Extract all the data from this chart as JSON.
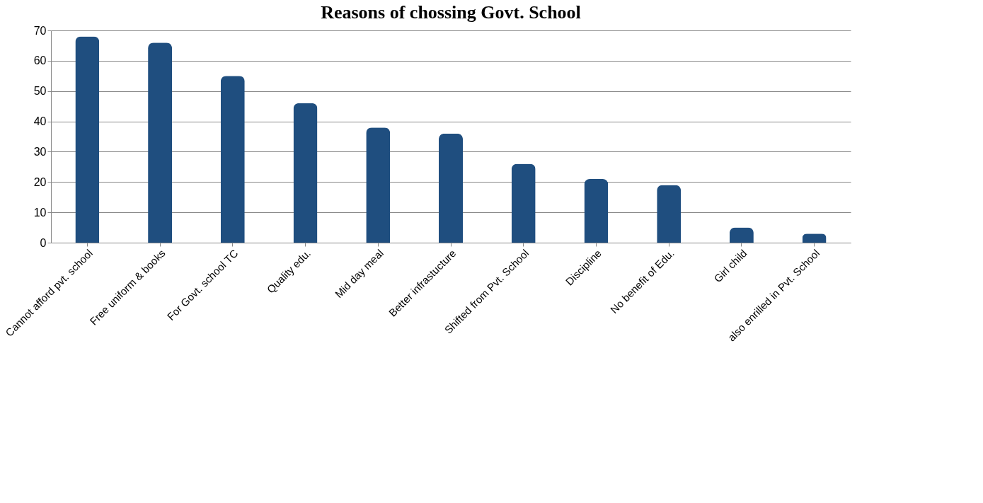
{
  "chart_data": {
    "type": "bar",
    "title": "Reasons of chossing Govt. School",
    "categories": [
      "Cannot afford pvt. school",
      "Free uniform & books",
      "For Govt. school TC",
      "Quality edu.",
      "Mid day meal",
      "Better infrastucture",
      "Shifted from Pvt. School",
      "Discipline",
      "No benefit of Edu.",
      "Girl child",
      "also enrilled in Pvt. School"
    ],
    "values": [
      68,
      66,
      55,
      46,
      38,
      36,
      26,
      21,
      19,
      5,
      3
    ],
    "color": "#1f4e7f",
    "ylim": [
      0,
      70
    ],
    "yticks": [
      0,
      10,
      20,
      30,
      40,
      50,
      60,
      70
    ],
    "grid": "y"
  }
}
